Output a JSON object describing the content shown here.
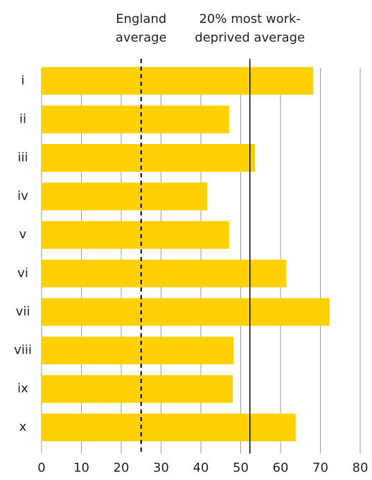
{
  "chart_data": {
    "type": "barh",
    "categories": [
      "i",
      "ii",
      "iii",
      "iv",
      "v",
      "vi",
      "vii",
      "viii",
      "ix",
      "x"
    ],
    "values": [
      68.2,
      47.1,
      53.6,
      41.6,
      47.1,
      61.4,
      72.3,
      48.2,
      48.0,
      63.8
    ],
    "color": "#ffd100",
    "xlim": [
      0,
      80
    ],
    "xticks": [
      0,
      10,
      20,
      30,
      40,
      50,
      60,
      70,
      80
    ],
    "grid": true,
    "reference_lines": [
      {
        "label": [
          "England",
          "average"
        ],
        "value": 25,
        "style": "dashed",
        "color": "#000000"
      },
      {
        "label": [
          "20% most work-",
          "deprived average"
        ],
        "value": 52.3,
        "style": "solid",
        "color": "#000000"
      }
    ]
  }
}
